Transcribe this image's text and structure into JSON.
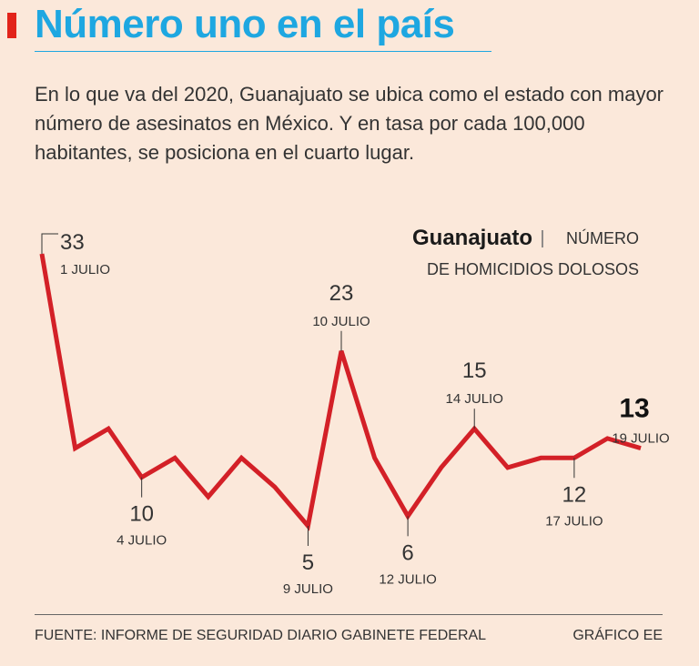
{
  "header": {
    "title": "Número uno en el país",
    "subtitle": "En lo que va del 2020, Guanajuato se ubica como el estado con mayor número de asesinatos en México. Y en tasa por cada 100,000 habitantes, se posiciona en el cuarto lugar."
  },
  "chart_label": {
    "state": "Guanajuato",
    "separator": "|",
    "measure_line1": "NÚMERO",
    "measure_line2": "DE HOMICIDIOS DOLOSOS"
  },
  "footer": {
    "source": "FUENTE: INFORME DE SEGURIDAD DIARIO GABINETE FEDERAL",
    "credit": "GRÁFICO EE"
  },
  "colors": {
    "background": "#fbe8da",
    "title": "#1ea7e1",
    "accent_bar": "#e2231a",
    "line": "#d32027"
  },
  "chart_data": {
    "type": "line",
    "title": "",
    "xlabel": "",
    "ylabel": "",
    "x": [
      1,
      2,
      3,
      4,
      5,
      6,
      7,
      8,
      9,
      10,
      11,
      12,
      13,
      14,
      15,
      16,
      17,
      18,
      19
    ],
    "values": [
      33,
      13,
      15,
      10,
      12,
      8,
      12,
      9,
      5,
      23,
      12,
      6,
      11,
      15,
      11,
      12,
      12,
      14,
      13
    ],
    "annotations": [
      {
        "index": 0,
        "value": "33",
        "date": "1 JULIO",
        "position": "above",
        "bold": false
      },
      {
        "index": 3,
        "value": "10",
        "date": "4 JULIO",
        "position": "below",
        "bold": false
      },
      {
        "index": 8,
        "value": "5",
        "date": "9 JULIO",
        "position": "below",
        "bold": false
      },
      {
        "index": 9,
        "value": "23",
        "date": "10 JULIO",
        "position": "above",
        "bold": false
      },
      {
        "index": 11,
        "value": "6",
        "date": "12 JULIO",
        "position": "below",
        "bold": false
      },
      {
        "index": 13,
        "value": "15",
        "date": "14 JULIO",
        "position": "above",
        "bold": false
      },
      {
        "index": 16,
        "value": "12",
        "date": "17 JULIO",
        "position": "below",
        "bold": false
      },
      {
        "index": 18,
        "value": "13",
        "date": "19 JULIO",
        "position": "above",
        "bold": true
      }
    ],
    "ylim": [
      0,
      35
    ],
    "grid": false,
    "legend": "none"
  }
}
